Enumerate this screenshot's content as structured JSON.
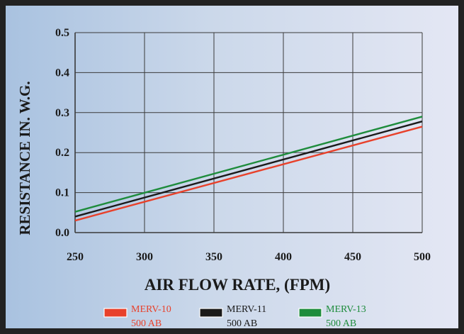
{
  "chart_data": {
    "type": "line",
    "title": "",
    "xlabel": "AIR FLOW RATE, (FPM)",
    "ylabel": "RESISTANCE IN. W.G.",
    "xlim": [
      250,
      500
    ],
    "ylim": [
      0,
      0.5
    ],
    "x_ticks": [
      "250",
      "300",
      "350",
      "400",
      "450",
      "500"
    ],
    "y_ticks": [
      "0.0",
      "0.1",
      "0.2",
      "0.3",
      "0.4",
      "0.5"
    ],
    "grid": true,
    "legend_position": "bottom",
    "series": [
      {
        "name": "MERV-10",
        "sub": "500 AB",
        "color": "#e8412b",
        "x": [
          250,
          500
        ],
        "y": [
          0.03,
          0.265
        ]
      },
      {
        "name": "MERV-11",
        "sub": "500 AB",
        "color": "#1a1a1a",
        "x": [
          250,
          500
        ],
        "y": [
          0.04,
          0.278
        ]
      },
      {
        "name": "MERV-13",
        "sub": "500 AB",
        "color": "#1e8c3c",
        "x": [
          250,
          500
        ],
        "y": [
          0.052,
          0.29
        ]
      }
    ]
  }
}
